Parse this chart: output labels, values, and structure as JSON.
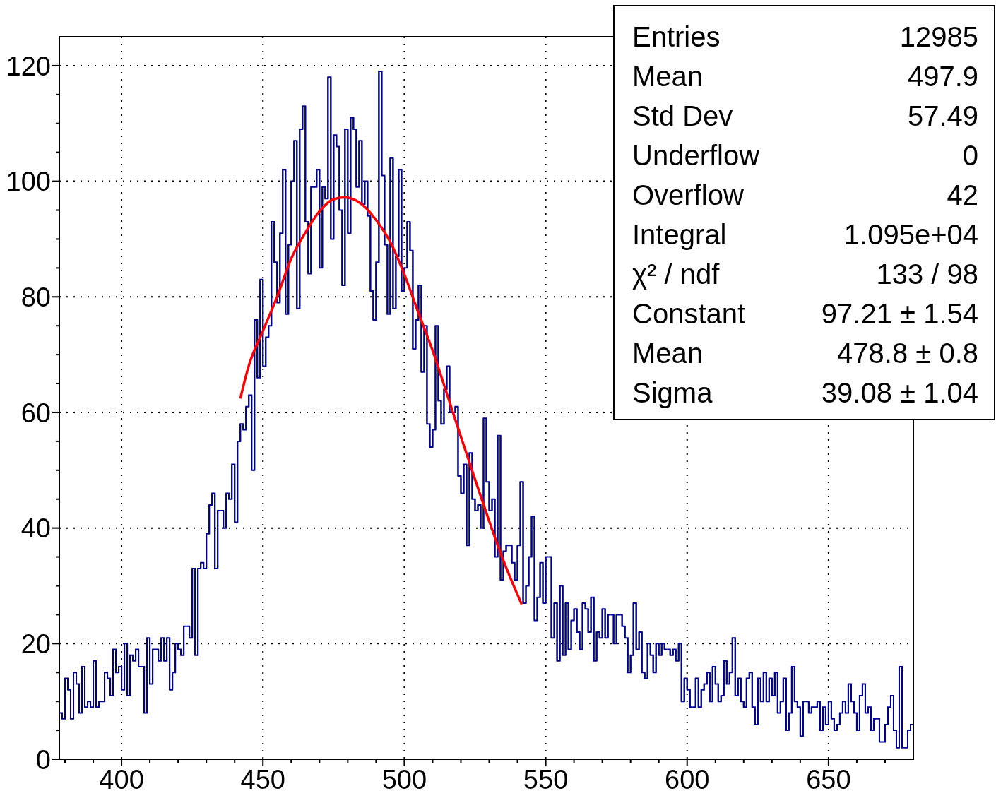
{
  "chart_data": {
    "type": "histogram",
    "xlim": [
      378,
      680
    ],
    "ylim": [
      0,
      125
    ],
    "xticks": [
      {
        "value": 380,
        "label": null
      },
      {
        "value": 390,
        "label": null
      },
      400,
      {
        "value": 410,
        "label": null
      },
      {
        "value": 420,
        "label": null
      },
      {
        "value": 430,
        "label": null
      },
      {
        "value": 440,
        "label": null
      },
      450,
      {
        "value": 460,
        "label": null
      },
      {
        "value": 470,
        "label": null
      },
      {
        "value": 480,
        "label": null
      },
      {
        "value": 490,
        "label": null
      },
      500,
      {
        "value": 510,
        "label": null
      },
      {
        "value": 520,
        "label": null
      },
      {
        "value": 530,
        "label": null
      },
      {
        "value": 540,
        "label": null
      },
      550,
      {
        "value": 560,
        "label": null
      },
      {
        "value": 570,
        "label": null
      },
      {
        "value": 580,
        "label": null
      },
      {
        "value": 590,
        "label": null
      },
      600,
      {
        "value": 610,
        "label": null
      },
      {
        "value": 620,
        "label": null
      },
      {
        "value": 630,
        "label": null
      },
      {
        "value": 640,
        "label": null
      },
      650,
      {
        "value": 660,
        "label": null
      },
      {
        "value": 670,
        "label": null
      }
    ],
    "yticks": [
      0,
      {
        "value": 5,
        "label": null
      },
      {
        "value": 10,
        "label": null
      },
      {
        "value": 15,
        "label": null
      },
      20,
      {
        "value": 25,
        "label": null
      },
      {
        "value": 30,
        "label": null
      },
      {
        "value": 35,
        "label": null
      },
      40,
      {
        "value": 45,
        "label": null
      },
      {
        "value": 50,
        "label": null
      },
      {
        "value": 55,
        "label": null
      },
      60,
      {
        "value": 65,
        "label": null
      },
      {
        "value": 70,
        "label": null
      },
      {
        "value": 75,
        "label": null
      },
      80,
      {
        "value": 85,
        "label": null
      },
      {
        "value": 90,
        "label": null
      },
      {
        "value": 95,
        "label": null
      },
      100,
      {
        "value": 105,
        "label": null
      },
      {
        "value": 110,
        "label": null
      },
      {
        "value": 115,
        "label": null
      },
      120
    ],
    "grid": true,
    "bins": [
      378,
      379,
      380,
      381,
      382,
      383,
      384,
      385,
      386,
      387,
      388,
      389,
      390,
      391,
      392,
      393,
      394,
      395,
      396,
      397,
      398,
      399,
      400,
      401,
      402,
      403,
      404,
      405,
      406,
      407,
      408,
      409,
      410,
      411,
      412,
      413,
      414,
      415,
      416,
      417,
      418,
      419,
      420,
      421,
      422,
      423,
      424,
      425,
      426,
      427,
      428,
      429,
      430,
      431,
      432,
      433,
      434,
      435,
      436,
      437,
      438,
      439,
      440,
      441,
      442,
      443,
      444,
      445,
      446,
      447,
      448,
      449,
      450,
      451,
      452,
      453,
      454,
      455,
      456,
      457,
      458,
      459,
      460,
      461,
      462,
      463,
      464,
      465,
      466,
      467,
      468,
      469,
      470,
      471,
      472,
      473,
      474,
      475,
      476,
      477,
      478,
      479,
      480,
      481,
      482,
      483,
      484,
      485,
      486,
      487,
      488,
      489,
      490,
      491,
      492,
      493,
      494,
      495,
      496,
      497,
      498,
      499,
      500,
      501,
      502,
      503,
      504,
      505,
      506,
      507,
      508,
      509,
      510,
      511,
      512,
      513,
      514,
      515,
      516,
      517,
      518,
      519,
      520,
      521,
      522,
      523,
      524,
      525,
      526,
      527,
      528,
      529,
      530,
      531,
      532,
      533,
      534,
      535,
      536,
      537,
      538,
      539,
      540,
      541,
      542,
      543,
      544,
      545,
      546,
      547,
      548,
      549,
      550,
      551,
      552,
      553,
      554,
      555,
      556,
      557,
      558,
      559,
      560,
      561,
      562,
      563,
      564,
      565,
      566,
      567,
      568,
      569,
      570,
      571,
      572,
      573,
      574,
      575,
      576,
      577,
      578,
      579,
      580,
      581,
      582,
      583,
      584,
      585,
      586,
      587,
      588,
      589,
      590,
      591,
      592,
      593,
      594,
      595,
      596,
      597,
      598,
      599,
      600,
      601,
      602,
      603,
      604,
      605,
      606,
      607,
      608,
      609,
      610,
      611,
      612,
      613,
      614,
      615,
      616,
      617,
      618,
      619,
      620,
      621,
      622,
      623,
      624,
      625,
      626,
      627,
      628,
      629,
      630,
      631,
      632,
      633,
      634,
      635,
      636,
      637,
      638,
      639,
      640,
      641,
      642,
      643,
      644,
      645,
      646,
      647,
      648,
      649,
      650,
      651,
      652,
      653,
      654,
      655,
      656,
      657,
      658,
      659,
      660,
      661,
      662,
      663,
      664,
      665,
      666,
      667,
      668,
      669,
      670,
      671,
      672,
      673,
      674,
      675,
      676,
      677,
      678,
      679,
      680
    ],
    "color": "#000099",
    "values": [
      8,
      7,
      14,
      12,
      7,
      15,
      13,
      8,
      16,
      9,
      10,
      9,
      17,
      9,
      10,
      10,
      15,
      14,
      11,
      19,
      15,
      16,
      12,
      20,
      11,
      18,
      17,
      19,
      16,
      16,
      8,
      21,
      13,
      19,
      19,
      17,
      21,
      17,
      21,
      12,
      15,
      20,
      19,
      18,
      23,
      23,
      21,
      33,
      18,
      33,
      34,
      33,
      39,
      44,
      46,
      33,
      43,
      43,
      40,
      46,
      45,
      51,
      41,
      55,
      58,
      57,
      61,
      63,
      50,
      76,
      66,
      83,
      68,
      73,
      75,
      93,
      86,
      79,
      91,
      102,
      77,
      89,
      100,
      107,
      78,
      109,
      113,
      93,
      84,
      99,
      99,
      102,
      85,
      99,
      97,
      118,
      90,
      108,
      106,
      95,
      82,
      109,
      91,
      111,
      109,
      99,
      107,
      96,
      100,
      94,
      81,
      76,
      86,
      119,
      101,
      89,
      77,
      104,
      78,
      87,
      102,
      81,
      85,
      93,
      88,
      71,
      76,
      82,
      67,
      75,
      58,
      54,
      57,
      75,
      62,
      58,
      64,
      68,
      60,
      60,
      61,
      49,
      46,
      51,
      37,
      53,
      45,
      43,
      44,
      40,
      59,
      48,
      43,
      45,
      35,
      56,
      31,
      36,
      37,
      37,
      34,
      31,
      37,
      48,
      27,
      30,
      35,
      42,
      24,
      28,
      34,
      27,
      35,
      35,
      21,
      27,
      17,
      30,
      18,
      27,
      19,
      24,
      26,
      22,
      19,
      27,
      26,
      22,
      28,
      17,
      22,
      21,
      26,
      21,
      25,
      25,
      20,
      25,
      25,
      23,
      21,
      15,
      18,
      27,
      19,
      22,
      15,
      14,
      20,
      18,
      15,
      20,
      18,
      20,
      19,
      19,
      18,
      19,
      17,
      20,
      10,
      14,
      12,
      9,
      9,
      14,
      9,
      12,
      13,
      15,
      10,
      16,
      13,
      10,
      11,
      17,
      13,
      15,
      21,
      11,
      14,
      10,
      9,
      14,
      15,
      9,
      6,
      14,
      10,
      15,
      10,
      14,
      11,
      15,
      8,
      10,
      14,
      5,
      8,
      16,
      10,
      9,
      4,
      10,
      10,
      8,
      9,
      9,
      10,
      5,
      9,
      6,
      10,
      7,
      5,
      6,
      8,
      10,
      8,
      13,
      10,
      8,
      5,
      11,
      13,
      8,
      9,
      5,
      7,
      7,
      3,
      3,
      6,
      9,
      11,
      5,
      2,
      16,
      2,
      2,
      5,
      6
    ],
    "series": [
      {
        "type": "line",
        "color": "#ff0000",
        "x": [
          442,
          445,
          450,
          455,
          460,
          465,
          470,
          475,
          478.8,
          485,
          490,
          495,
          500,
          505,
          510,
          515,
          520,
          525,
          530,
          535,
          541.5
        ],
        "values": [
          62.4,
          68.1,
          74.1,
          80.0,
          86.6,
          91.1,
          94.8,
          96.9,
          97.2,
          96.0,
          93.3,
          89.5,
          83.9,
          77.2,
          70.7,
          63.3,
          55.8,
          48.4,
          41.2,
          34.4,
          26.8
        ]
      }
    ],
    "annotations": [
      "Entries",
      "12985",
      "Mean",
      "497.9",
      "Std Dev",
      "57.49",
      "Underflow",
      "0",
      "Overflow",
      "42",
      "Integral",
      "1.095e+04",
      "χ² / ndf",
      "133 / 98",
      "Constant",
      "97.21 ± 1.54",
      "Mean",
      "478.8 ± 0.8",
      "Sigma",
      "39.08 ± 1.04"
    ]
  }
}
